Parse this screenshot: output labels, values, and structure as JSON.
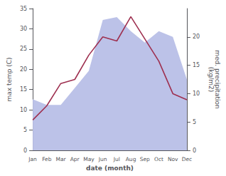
{
  "chart_data": {
    "type": "line",
    "xlabel": "date (month)",
    "ylabel": "max temp (C)",
    "y2label": "med. precipitation\n(kg/m2)",
    "categories": [
      "Jan",
      "Feb",
      "Mar",
      "Apr",
      "May",
      "Jun",
      "Jul",
      "Aug",
      "Sep",
      "Oct",
      "Nov",
      "Dec"
    ],
    "series": [
      {
        "type": "area",
        "axis": "y2",
        "color": "#bcc2e8",
        "values": [
          9.0,
          8.0,
          8.0,
          11.0,
          14.0,
          23.0,
          23.5,
          21.0,
          19.0,
          21.0,
          20.0,
          12.5
        ]
      },
      {
        "type": "line",
        "color": "#9e3050",
        "values": [
          7.5,
          11.0,
          16.5,
          17.5,
          23.5,
          28.0,
          27.0,
          33.0,
          27.5,
          22.0,
          14.0,
          12.5
        ]
      }
    ],
    "ylim": [
      0,
      35
    ],
    "yticks": [
      0,
      5,
      10,
      15,
      20,
      25,
      30,
      35
    ],
    "y2lim": [
      0,
      25
    ],
    "y2ticks": [
      0,
      5,
      10,
      15,
      20
    ],
    "grid": false
  }
}
